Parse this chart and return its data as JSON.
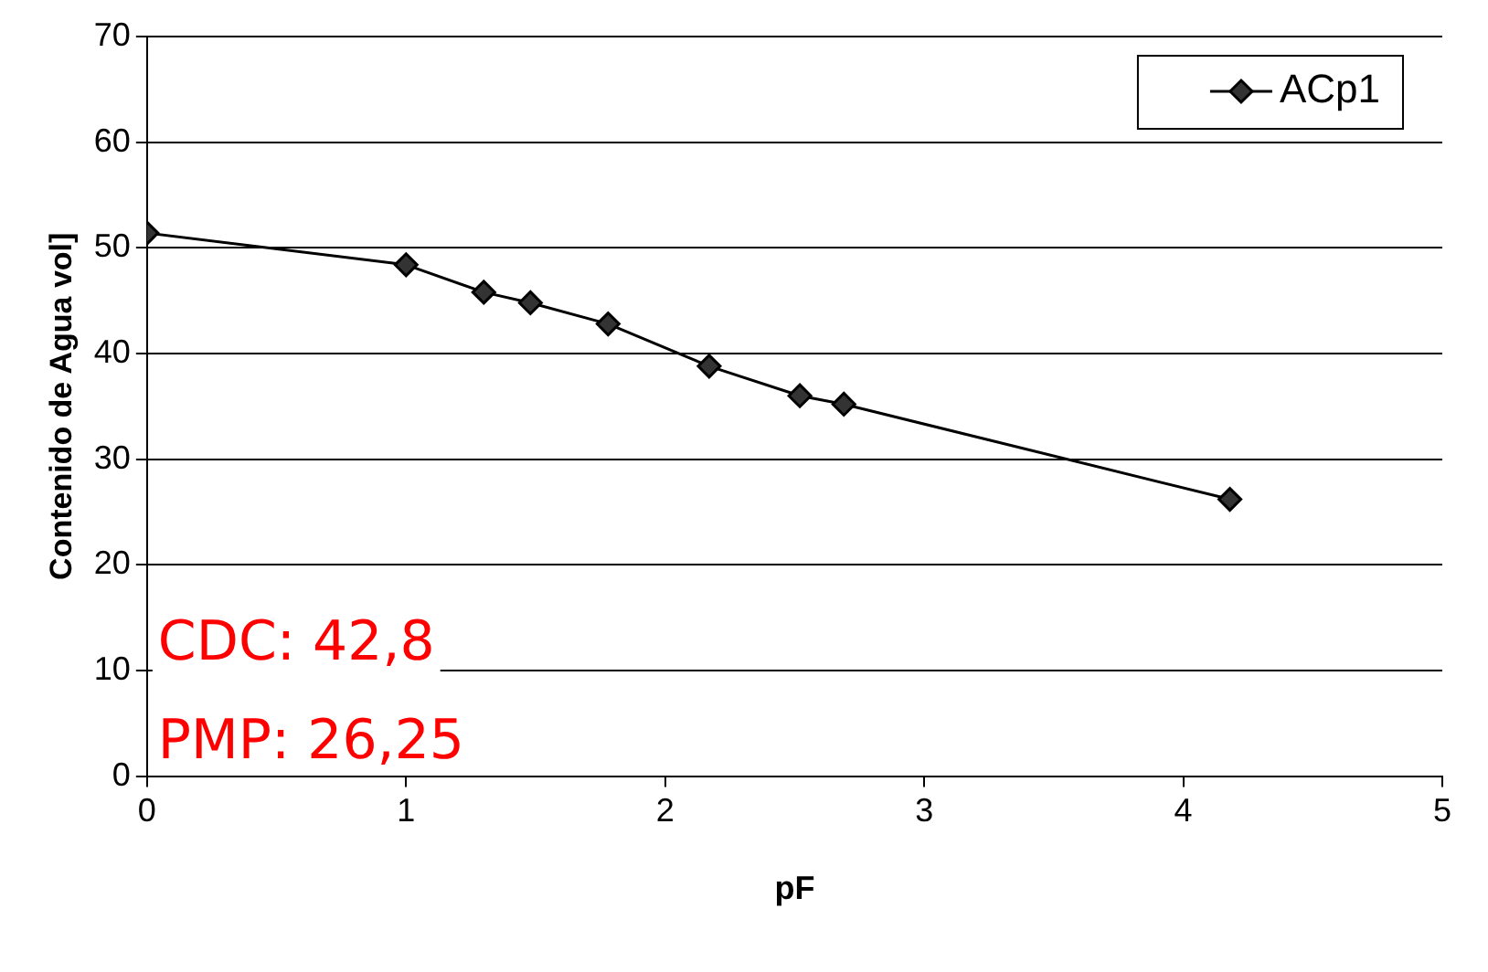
{
  "chart_data": {
    "type": "line",
    "xlabel": "pF",
    "ylabel": "Contenido de Agua vol]",
    "x": [
      0,
      1,
      1.3,
      1.48,
      1.78,
      2.17,
      2.52,
      2.69,
      4.18
    ],
    "series": [
      {
        "name": "ACp1",
        "color": "#000000",
        "values": [
          51.4,
          48.4,
          45.8,
          44.8,
          42.8,
          38.8,
          36,
          35.2,
          26.2
        ]
      }
    ],
    "xlim": [
      0,
      5
    ],
    "xticks": [
      0,
      1,
      2,
      3,
      4,
      5
    ],
    "ylim": [
      0,
      70
    ],
    "yticks": [
      0,
      10,
      20,
      30,
      40,
      50,
      60,
      70
    ],
    "grid": "y",
    "legend": "top right",
    "marker": "diamond",
    "line_style": "solid",
    "annotations": [
      "CDC: 42,8",
      "PMP: 26,25"
    ]
  }
}
